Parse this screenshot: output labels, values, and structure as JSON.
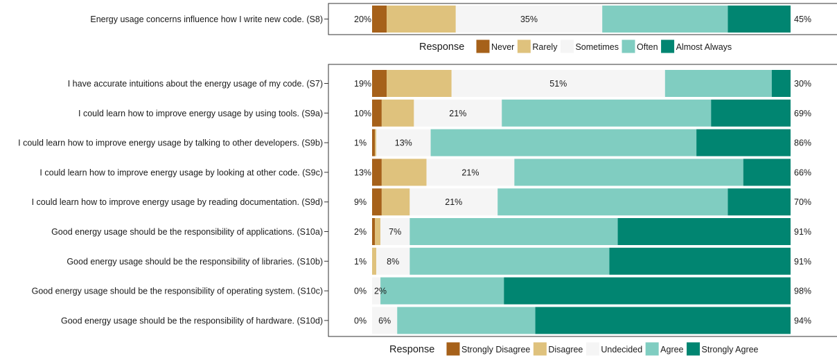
{
  "chart_data": [
    {
      "type": "bar",
      "orientation": "horizontal",
      "stacked": true,
      "legend": {
        "title": "Response",
        "position": "bottom",
        "entries": [
          "Never",
          "Rarely",
          "Sometimes",
          "Often",
          "Almost Always"
        ],
        "colors": [
          "#a6611a",
          "#dfc27d",
          "#f5f5f5",
          "#80cdc1",
          "#018571"
        ]
      },
      "rows": [
        {
          "label": "Energy usage concerns influence how I write new code. (S8)",
          "values": [
            3.5,
            16.5,
            35,
            30,
            15
          ],
          "left_pct": "20%",
          "center_pct": "35%",
          "right_pct": "45%"
        }
      ]
    },
    {
      "type": "bar",
      "orientation": "horizontal",
      "stacked": true,
      "legend": {
        "title": "Response",
        "position": "bottom",
        "entries": [
          "Strongly Disagree",
          "Disagree",
          "Undecided",
          "Agree",
          "Strongly Agree"
        ],
        "colors": [
          "#a6611a",
          "#dfc27d",
          "#f5f5f5",
          "#80cdc1",
          "#018571"
        ]
      },
      "rows": [
        {
          "label": "I have accurate intuitions about the energy usage of my code. (S7)",
          "values": [
            3.5,
            15.5,
            51,
            25.5,
            4.5
          ],
          "left_pct": "19%",
          "center_pct": "51%",
          "right_pct": "30%"
        },
        {
          "label": "I could learn how to improve energy usage by using tools. (S9a)",
          "values": [
            2.3,
            7.7,
            21,
            50,
            19
          ],
          "left_pct": "10%",
          "center_pct": "21%",
          "right_pct": "69%"
        },
        {
          "label": "I could learn how to improve energy usage by talking to other developers. (S9b)",
          "values": [
            0.7,
            0.3,
            13,
            63.5,
            22.5
          ],
          "left_pct": "1%",
          "center_pct": "13%",
          "right_pct": "86%"
        },
        {
          "label": "I could learn how to improve energy usage by looking at other code. (S9c)",
          "values": [
            2.3,
            10.7,
            21,
            54.7,
            11.3
          ],
          "left_pct": "13%",
          "center_pct": "21%",
          "right_pct": "66%"
        },
        {
          "label": "I could learn how to improve energy usage by reading documentation. (S9d)",
          "values": [
            2.3,
            6.7,
            21,
            55,
            15
          ],
          "left_pct": "9%",
          "center_pct": "21%",
          "right_pct": "70%"
        },
        {
          "label": "Good energy usage should be the responsibility of applications. (S10a)",
          "values": [
            0.7,
            1.3,
            7,
            49.7,
            41.3
          ],
          "left_pct": "2%",
          "center_pct": "7%",
          "right_pct": "91%"
        },
        {
          "label": "Good energy usage should be the responsibility of libraries. (S10b)",
          "values": [
            0,
            1,
            8,
            47.7,
            43.3
          ],
          "left_pct": "1%",
          "center_pct": "8%",
          "right_pct": "91%"
        },
        {
          "label": "Good energy usage should be the responsibility of operating system. (S10c)",
          "values": [
            0,
            0,
            2,
            29.5,
            68.5
          ],
          "left_pct": "0%",
          "center_pct": "2%",
          "right_pct": "98%"
        },
        {
          "label": "Good energy usage should be the responsibility of hardware. (S10d)",
          "values": [
            0,
            0,
            6,
            33,
            61
          ],
          "left_pct": "0%",
          "center_pct": "6%",
          "right_pct": "94%"
        }
      ]
    }
  ]
}
